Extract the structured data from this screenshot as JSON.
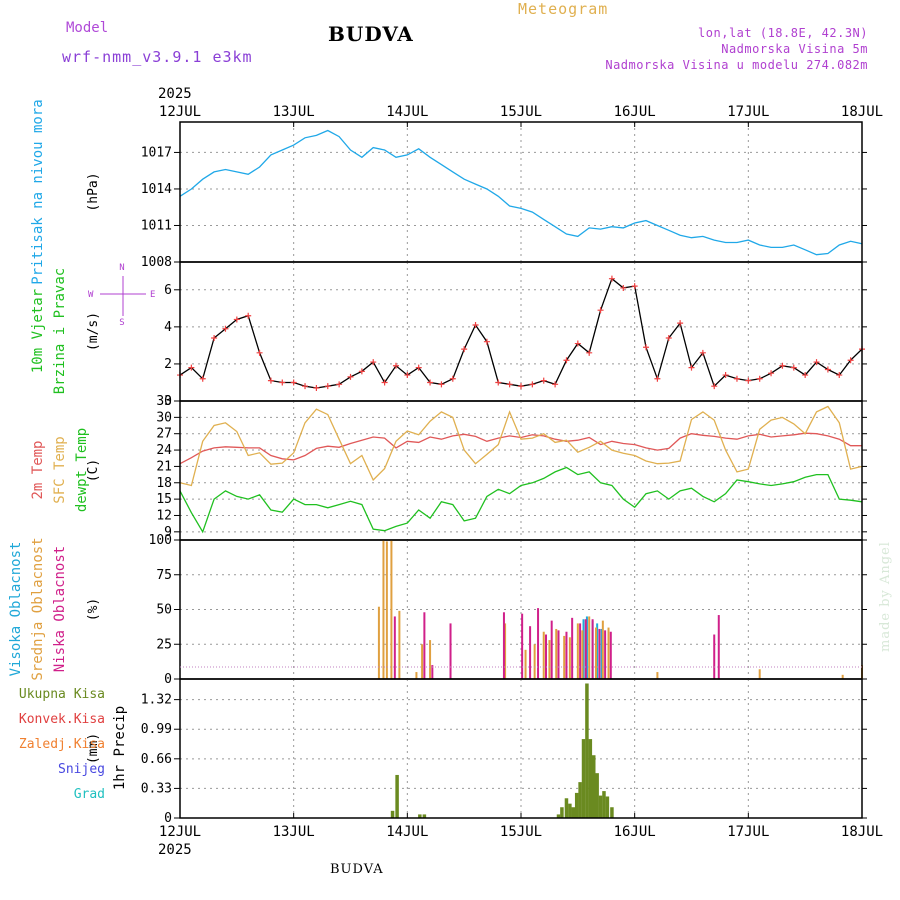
{
  "header": {
    "model_label": "Model",
    "model_name": "wrf-nmm_v3.9.1  e3km",
    "location": "BUDVA",
    "chart_type": "Meteogram",
    "lonlat": "lon,lat (18.8E, 42.3N)",
    "altitude": "Nadmorska Visina 5m",
    "model_altitude": "Nadmorska Visina u modelu 274.082m"
  },
  "footer": {
    "location": "BUDVA"
  },
  "watermark": "made by Angel",
  "colors": {
    "pressure": "#20a8e8",
    "wind_line": "#000000",
    "wind_marker": "#f04040",
    "temp2m": "#e05858",
    "sfc_temp": "#e0b050",
    "dewpt": "#20c020",
    "cloud_high": "#20a8d8",
    "cloud_mid": "#e0a040",
    "cloud_low": "#d0208a",
    "precip_total": "#6a8a20",
    "precip_conv": "#e04040",
    "precip_frz": "#f08030",
    "snow": "#4848e0",
    "grad": "#20c0c0"
  },
  "chart_data": [
    {
      "type": "line",
      "panel": "pressure",
      "ylabel_left": "Pritisak na nivou mora",
      "ylabel_right": "(hPa)",
      "ylim": [
        1008,
        1019.5
      ],
      "yticks": [
        1008,
        1011,
        1014,
        1017
      ],
      "series": [
        {
          "name": "Pritisak na nivou mora",
          "x": [
            0,
            0.1,
            0.2,
            0.3,
            0.4,
            0.5,
            0.6,
            0.7,
            0.8,
            0.9,
            1.0,
            1.1,
            1.2,
            1.3,
            1.4,
            1.5,
            1.6,
            1.7,
            1.8,
            1.9,
            2.0,
            2.1,
            2.2,
            2.3,
            2.4,
            2.5,
            2.6,
            2.7,
            2.8,
            2.9,
            3.0,
            3.1,
            3.2,
            3.3,
            3.4,
            3.5,
            3.6,
            3.7,
            3.8,
            3.9,
            4.0,
            4.1,
            4.2,
            4.3,
            4.4,
            4.5,
            4.6,
            4.7,
            4.8,
            4.9,
            5.0,
            5.1,
            5.2,
            5.3,
            5.4,
            5.5,
            5.6,
            5.7,
            5.8,
            5.9,
            6.0
          ],
          "values": [
            1013.4,
            1014.0,
            1014.8,
            1015.4,
            1015.6,
            1015.4,
            1015.2,
            1015.8,
            1016.8,
            1017.2,
            1017.6,
            1018.2,
            1018.4,
            1018.8,
            1018.3,
            1017.2,
            1016.6,
            1017.4,
            1017.2,
            1016.6,
            1016.8,
            1017.3,
            1016.6,
            1016.0,
            1015.4,
            1014.8,
            1014.4,
            1014.0,
            1013.4,
            1012.6,
            1012.4,
            1012.1,
            1011.5,
            1010.9,
            1010.3,
            1010.1,
            1010.8,
            1010.7,
            1010.9,
            1010.8,
            1011.2,
            1011.4,
            1011.0,
            1010.6,
            1010.2,
            1010.0,
            1010.1,
            1009.8,
            1009.6,
            1009.6,
            1009.8,
            1009.4,
            1009.2,
            1009.2,
            1009.4,
            1009.0,
            1008.6,
            1008.7,
            1009.4,
            1009.7,
            1009.5
          ]
        }
      ]
    },
    {
      "type": "line",
      "panel": "wind",
      "ylabel_left": [
        "10m Vjetar",
        "Brzina i Pravac"
      ],
      "ylabel_right": "(m/s)",
      "compass": {
        "north": "N",
        "west": "W",
        "east": "E",
        "south": "S"
      },
      "ylim": [
        0,
        7.5
      ],
      "yticks": [
        0,
        2,
        4,
        6
      ],
      "series": [
        {
          "name": "Brzina vjetra",
          "x": [
            0,
            0.1,
            0.2,
            0.3,
            0.4,
            0.5,
            0.6,
            0.7,
            0.8,
            0.9,
            1.0,
            1.1,
            1.2,
            1.3,
            1.4,
            1.5,
            1.6,
            1.7,
            1.8,
            1.9,
            2.0,
            2.1,
            2.2,
            2.3,
            2.4,
            2.5,
            2.6,
            2.7,
            2.8,
            2.9,
            3.0,
            3.1,
            3.2,
            3.3,
            3.4,
            3.5,
            3.6,
            3.7,
            3.8,
            3.9,
            4.0,
            4.1,
            4.2,
            4.3,
            4.4,
            4.5,
            4.6,
            4.7,
            4.8,
            4.9,
            5.0,
            5.1,
            5.2,
            5.3,
            5.4,
            5.5,
            5.6,
            5.7,
            5.8,
            5.9,
            6.0
          ],
          "values": [
            1.4,
            1.8,
            1.2,
            3.4,
            3.9,
            4.4,
            4.6,
            2.6,
            1.1,
            1.0,
            1.0,
            0.8,
            0.7,
            0.8,
            0.9,
            1.3,
            1.6,
            2.1,
            1.0,
            1.9,
            1.4,
            1.8,
            1.0,
            0.9,
            1.2,
            2.8,
            4.1,
            3.2,
            1.0,
            0.9,
            0.8,
            0.9,
            1.1,
            0.9,
            2.2,
            3.1,
            2.6,
            4.9,
            6.6,
            6.1,
            6.2,
            2.9,
            1.2,
            3.4,
            4.2,
            1.8,
            2.6,
            0.8,
            1.4,
            1.2,
            1.1,
            1.2,
            1.5,
            1.9,
            1.8,
            1.4,
            2.1,
            1.7,
            1.4,
            2.2,
            2.8
          ]
        }
      ]
    },
    {
      "type": "line",
      "panel": "temperature",
      "ylabel_left": [
        "2m Temp",
        "SFC Temp",
        "dewpt Temp"
      ],
      "ylabel_right": "(C)",
      "ylim": [
        7.5,
        33
      ],
      "yticks": [
        9,
        12,
        15,
        18,
        21,
        24,
        27,
        30,
        33
      ],
      "series": [
        {
          "name": "2m Temp",
          "x": [
            0,
            0.1,
            0.2,
            0.3,
            0.4,
            0.5,
            0.6,
            0.7,
            0.8,
            0.9,
            1.0,
            1.1,
            1.2,
            1.3,
            1.4,
            1.5,
            1.6,
            1.7,
            1.8,
            1.9,
            2.0,
            2.1,
            2.2,
            2.3,
            2.4,
            2.5,
            2.6,
            2.7,
            2.8,
            2.9,
            3.0,
            3.1,
            3.2,
            3.3,
            3.4,
            3.5,
            3.6,
            3.7,
            3.8,
            3.9,
            4.0,
            4.1,
            4.2,
            4.3,
            4.4,
            4.5,
            4.6,
            4.7,
            4.8,
            4.9,
            5.0,
            5.1,
            5.2,
            5.3,
            5.4,
            5.5,
            5.6,
            5.7,
            5.8,
            5.9,
            6.0
          ],
          "values": [
            21.5,
            22.6,
            23.8,
            24.4,
            24.6,
            24.5,
            24.4,
            24.4,
            23.0,
            22.4,
            22.2,
            23.0,
            24.3,
            24.7,
            24.5,
            25.2,
            25.8,
            26.4,
            26.2,
            24.4,
            25.6,
            25.4,
            26.4,
            26.0,
            26.6,
            26.9,
            26.5,
            25.6,
            26.2,
            26.6,
            26.3,
            26.8,
            26.6,
            26.0,
            25.6,
            25.8,
            26.3,
            25.0,
            25.6,
            25.2,
            25.0,
            24.4,
            24.0,
            24.3,
            26.2,
            27.0,
            26.7,
            26.5,
            26.2,
            26.0,
            26.6,
            26.9,
            26.4,
            26.6,
            26.8,
            27.1,
            27.0,
            26.6,
            26.0,
            24.8,
            24.8
          ]
        },
        {
          "name": "SFC Temp",
          "x": [
            0,
            0.1,
            0.2,
            0.3,
            0.4,
            0.5,
            0.6,
            0.7,
            0.8,
            0.9,
            1.0,
            1.1,
            1.2,
            1.3,
            1.4,
            1.5,
            1.6,
            1.7,
            1.8,
            1.9,
            2.0,
            2.1,
            2.2,
            2.3,
            2.4,
            2.5,
            2.6,
            2.7,
            2.8,
            2.9,
            3.0,
            3.1,
            3.2,
            3.3,
            3.4,
            3.5,
            3.6,
            3.7,
            3.8,
            3.9,
            4.0,
            4.1,
            4.2,
            4.3,
            4.4,
            4.5,
            4.6,
            4.7,
            4.8,
            4.9,
            5.0,
            5.1,
            5.2,
            5.3,
            5.4,
            5.5,
            5.6,
            5.7,
            5.8,
            5.9,
            6.0
          ],
          "values": [
            18,
            17.5,
            25.6,
            28.5,
            29.0,
            27.4,
            23.0,
            23.5,
            21.4,
            21.6,
            23.5,
            29.0,
            31.5,
            30.5,
            26.0,
            21.5,
            23.0,
            18.5,
            20.6,
            25.6,
            27.5,
            26.8,
            29.3,
            31.0,
            30.0,
            24.0,
            21.5,
            23.2,
            25.0,
            31.0,
            26.0,
            26.2,
            27.0,
            25.4,
            25.8,
            23.6,
            24.5,
            25.6,
            24.0,
            23.4,
            23.0,
            22.0,
            21.5,
            21.6,
            22.0,
            29.6,
            31.0,
            29.5,
            24.0,
            20.0,
            20.5,
            27.8,
            29.5,
            30.0,
            28.8,
            27.0,
            31.0,
            32.0,
            29.0,
            20.5,
            21.0
          ]
        },
        {
          "name": "dewpt Temp",
          "x": [
            0,
            0.1,
            0.2,
            0.3,
            0.4,
            0.5,
            0.6,
            0.7,
            0.8,
            0.9,
            1.0,
            1.1,
            1.2,
            1.3,
            1.4,
            1.5,
            1.6,
            1.7,
            1.8,
            1.9,
            2.0,
            2.1,
            2.2,
            2.3,
            2.4,
            2.5,
            2.6,
            2.7,
            2.8,
            2.9,
            3.0,
            3.1,
            3.2,
            3.3,
            3.4,
            3.5,
            3.6,
            3.7,
            3.8,
            3.9,
            4.0,
            4.1,
            4.2,
            4.3,
            4.4,
            4.5,
            4.6,
            4.7,
            4.8,
            4.9,
            5.0,
            5.1,
            5.2,
            5.3,
            5.4,
            5.5,
            5.6,
            5.7,
            5.8,
            5.9,
            6.0
          ],
          "values": [
            16.5,
            12.5,
            9.0,
            15.0,
            16.5,
            15.5,
            15.0,
            15.8,
            13.0,
            12.6,
            15.0,
            14.0,
            14.0,
            13.4,
            14.0,
            14.6,
            14.0,
            9.5,
            9.2,
            10.0,
            10.6,
            13.0,
            11.5,
            14.5,
            14.0,
            11.0,
            11.5,
            15.5,
            16.8,
            16.0,
            17.5,
            18.0,
            18.8,
            20.0,
            20.8,
            19.5,
            20.0,
            18.0,
            17.5,
            15.0,
            13.5,
            16.0,
            16.5,
            15.0,
            16.5,
            17.0,
            15.5,
            14.5,
            16.0,
            18.5,
            18.2,
            17.8,
            17.5,
            17.8,
            18.2,
            19.0,
            19.5,
            19.5,
            15.0,
            14.8,
            14.5
          ]
        }
      ]
    },
    {
      "type": "bar",
      "panel": "clouds",
      "ylabel_left": [
        "Visoka Oblacnost",
        "Srednja Oblacnost",
        "Niska Oblacnost"
      ],
      "ylabel_right": "(%)",
      "ylim": [
        0,
        100
      ],
      "yticks": [
        0,
        25,
        50,
        75,
        100
      ],
      "series": [
        {
          "name": "Visoka Oblacnost",
          "x": [
            3.55,
            3.58,
            3.63,
            3.67,
            3.71
          ],
          "values": [
            43,
            45,
            42,
            40,
            36
          ]
        },
        {
          "name": "Srednja Oblacnost",
          "x": [
            1.75,
            1.79,
            1.82,
            1.86,
            1.93,
            2.08,
            2.13,
            2.2,
            2.86,
            3.04,
            3.12,
            3.2,
            3.25,
            3.31,
            3.38,
            3.43,
            3.5,
            3.54,
            3.6,
            3.66,
            3.72,
            3.77,
            4.2,
            5.1,
            5.83,
            6.0
          ],
          "values": [
            52,
            100,
            99,
            100,
            49,
            5,
            25,
            28,
            40,
            21,
            25,
            34,
            28,
            36,
            31,
            30,
            40,
            35,
            45,
            37,
            42,
            37,
            5,
            7,
            3,
            10
          ]
        },
        {
          "name": "Niska Oblacnost",
          "x": [
            1.89,
            2.15,
            2.22,
            2.38,
            2.85,
            3.01,
            3.08,
            3.15,
            3.22,
            3.27,
            3.33,
            3.4,
            3.45,
            3.52,
            3.57,
            3.63,
            3.69,
            3.74,
            3.79,
            4.7,
            4.74
          ],
          "values": [
            45,
            48,
            10,
            40,
            48,
            47,
            38,
            51,
            32,
            42,
            35,
            34,
            44,
            40,
            43,
            43,
            36,
            35,
            34,
            32,
            46
          ]
        }
      ]
    },
    {
      "type": "bar",
      "panel": "precipitation",
      "ylabel_left": "1hr Precip",
      "ylabel_right": "(mm)",
      "legend": [
        "Ukupna Kisa",
        "Konvek.Kisa",
        "Zaledj.Kisa",
        "Snijeg",
        "Grad"
      ],
      "ylim": [
        0,
        1.55
      ],
      "yticks": [
        0,
        0.33,
        0.66,
        0.99,
        1.32
      ],
      "series": [
        {
          "name": "Ukupna Kisa",
          "x": [
            1.87,
            1.91,
            2.11,
            2.15,
            3.33,
            3.36,
            3.4,
            3.43,
            3.46,
            3.49,
            3.52,
            3.55,
            3.58,
            3.61,
            3.64,
            3.67,
            3.7,
            3.73,
            3.76,
            3.8
          ],
          "values": [
            0.08,
            0.48,
            0.04,
            0.04,
            0.04,
            0.12,
            0.22,
            0.16,
            0.12,
            0.28,
            0.4,
            0.88,
            1.5,
            0.88,
            0.7,
            0.5,
            0.25,
            0.3,
            0.24,
            0.12
          ]
        }
      ]
    }
  ],
  "time_axis": {
    "year_label": "2025",
    "tick_labels": [
      "12JUL",
      "13JUL",
      "14JUL",
      "15JUL",
      "16JUL",
      "17JUL",
      "18JUL"
    ]
  }
}
